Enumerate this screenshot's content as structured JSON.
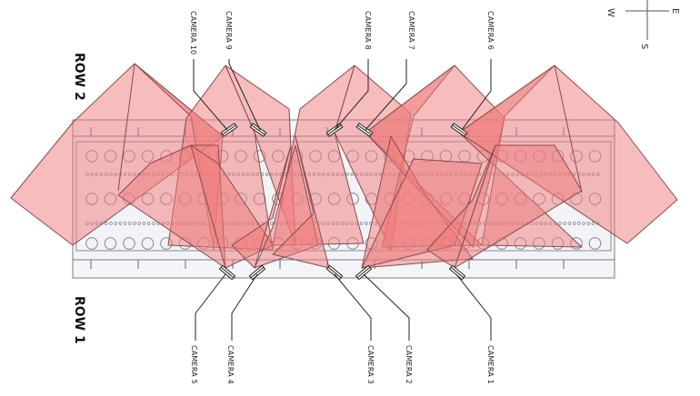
{
  "rows": {
    "top": "ROW 2",
    "bottom": "ROW 1"
  },
  "compass": {
    "west": "W",
    "east": "E",
    "south": "S"
  },
  "cameras": {
    "top": [
      {
        "id": "camera-10",
        "label": "CAMERA 10"
      },
      {
        "id": "camera-9",
        "label": "CAMERA 9"
      },
      {
        "id": "camera-8",
        "label": "CAMERA 8"
      },
      {
        "id": "camera-7",
        "label": "CAMERA 7"
      },
      {
        "id": "camera-6",
        "label": "CAMERA 6"
      }
    ],
    "bottom": [
      {
        "id": "camera-5",
        "label": "CAMERA 5"
      },
      {
        "id": "camera-4",
        "label": "CAMERA 4"
      },
      {
        "id": "camera-3",
        "label": "CAMERA 3"
      },
      {
        "id": "camera-2",
        "label": "CAMERA 2"
      },
      {
        "id": "camera-1",
        "label": "CAMERA 1"
      }
    ]
  },
  "colors": {
    "frustum_fill": "#f07b7b",
    "frustum_stroke": "#8a4a4a",
    "rack_stroke": "#7a7a8a",
    "leader_line": "#222222"
  }
}
